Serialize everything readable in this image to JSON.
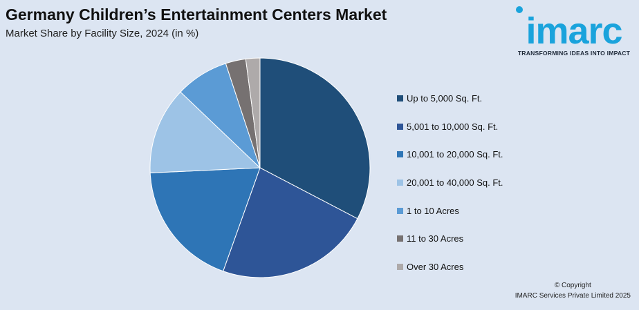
{
  "header": {
    "title": "Germany Children’s Entertainment Centers Market",
    "subtitle": "Market Share by Facility Size, 2024 (in %)"
  },
  "logo": {
    "word": "imarc",
    "tagline": "TRANSFORMING IDEAS INTO IMPACT",
    "color": "#1aa3dc"
  },
  "footer": {
    "copyright": "© Copyright",
    "company": "IMARC Services Private Limited 2025"
  },
  "chart_data": {
    "type": "pie",
    "title": "Germany Children’s Entertainment Centers Market",
    "subtitle": "Market Share by Facility Size, 2024 (in %)",
    "legend_position": "right",
    "categories": [
      "Up to 5,000 Sq. Ft.",
      "5,001 to 10,000 Sq. Ft.",
      "10,001 to 20,000 Sq. Ft.",
      "20,001 to 40,000 Sq. Ft.",
      "1 to 10 Acres",
      "11 to 30 Acres",
      "Over 30 Acres"
    ],
    "values": [
      33,
      23,
      19,
      13,
      7.9,
      3,
      2.1
    ],
    "colors": [
      "#1f4e79",
      "#2e5597",
      "#2e75b6",
      "#9dc3e6",
      "#5b9bd5",
      "#767171",
      "#aeaaaa"
    ]
  }
}
